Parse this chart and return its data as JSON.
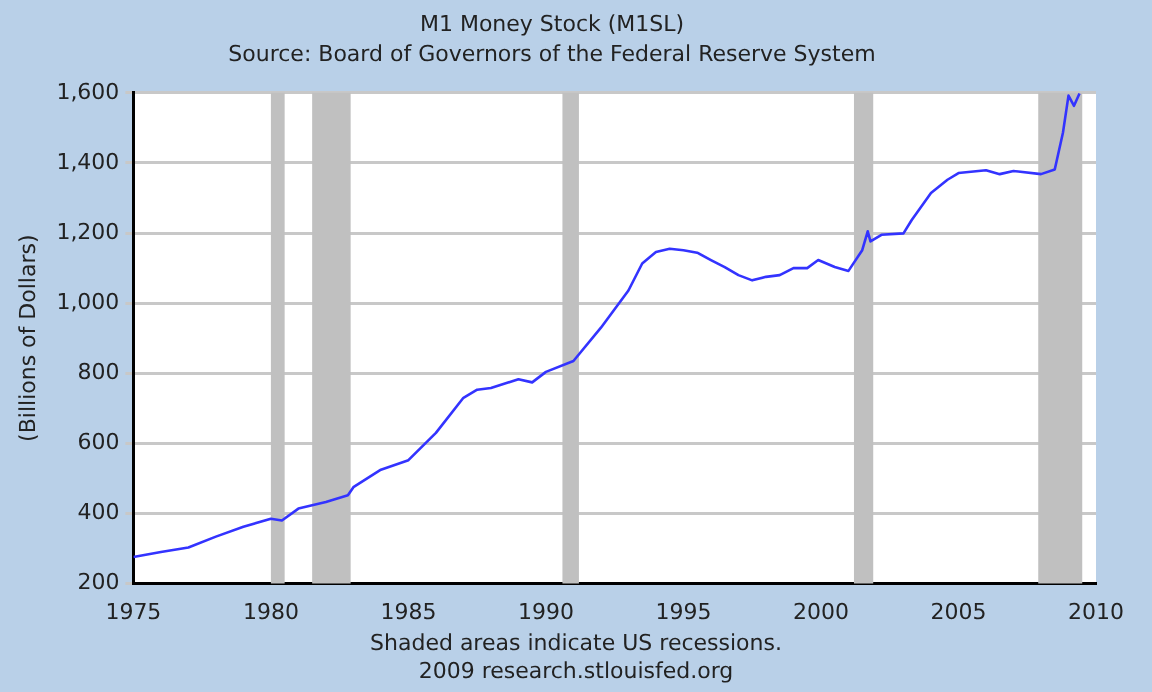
{
  "chart_data": {
    "type": "line",
    "title": "M1 Money Stock (M1SL)",
    "subtitle": "Source: Board of Governors of the Federal Reserve System",
    "ylabel": "(Billions of Dollars)",
    "annotations": [
      "Shaded areas indicate US recessions.",
      "2009 research.stlouisfed.org"
    ],
    "xlim": [
      1975,
      2010
    ],
    "xticks": [
      1975,
      1980,
      1985,
      1990,
      1995,
      2000,
      2005,
      2010
    ],
    "ylim": [
      200,
      1600
    ],
    "yticks": [
      {
        "value": 200,
        "label": "200"
      },
      {
        "value": 400,
        "label": "400"
      },
      {
        "value": 600,
        "label": "600"
      },
      {
        "value": 800,
        "label": "800"
      },
      {
        "value": 1000,
        "label": "1,000"
      },
      {
        "value": 1200,
        "label": "1,200"
      },
      {
        "value": 1400,
        "label": "1,400"
      },
      {
        "value": 1600,
        "label": "1,600"
      }
    ],
    "grid": "y",
    "legend": false,
    "marker": "none",
    "line_style": "solid",
    "bands": [
      {
        "axis": "x",
        "from": 1980.0,
        "to": 1980.5,
        "color": "#c0c0c0"
      },
      {
        "axis": "x",
        "from": 1981.5,
        "to": 1982.9,
        "color": "#c0c0c0"
      },
      {
        "axis": "x",
        "from": 1990.6,
        "to": 1991.2,
        "color": "#c0c0c0"
      },
      {
        "axis": "x",
        "from": 2001.2,
        "to": 2001.9,
        "color": "#c0c0c0"
      },
      {
        "axis": "x",
        "from": 2007.9,
        "to": 2009.5,
        "color": "#c0c0c0"
      }
    ],
    "series": [
      {
        "color": "#3333ff",
        "x": [
          1975,
          1976,
          1977,
          1978,
          1979,
          1980,
          1980.4,
          1981,
          1982,
          1982.8,
          1983,
          1984,
          1985,
          1986,
          1987,
          1987.5,
          1988,
          1989,
          1989.5,
          1990,
          1991,
          1992,
          1993,
          1993.5,
          1994,
          1994.5,
          1995,
          1995.5,
          1996,
          1996.5,
          1997,
          1997.5,
          1998,
          1998.5,
          1999,
          1999.5,
          1999.9,
          2000.5,
          2001,
          2001.5,
          2001.7,
          2001.8,
          2002.2,
          2003,
          2003.3,
          2004,
          2004.6,
          2005,
          2006,
          2006.5,
          2007,
          2008,
          2008.5,
          2008.8,
          2009,
          2009.2,
          2009.4
        ],
        "values": [
          276,
          290,
          303,
          334,
          362,
          385,
          380,
          414,
          433,
          452,
          475,
          525,
          552,
          630,
          730,
          753,
          758,
          783,
          774,
          804,
          835,
          930,
          1036,
          1113,
          1146,
          1155,
          1151,
          1144,
          1123,
          1103,
          1080,
          1065,
          1075,
          1080,
          1100,
          1100,
          1123,
          1103,
          1092,
          1151,
          1205,
          1176,
          1195,
          1199,
          1237,
          1314,
          1352,
          1371,
          1379,
          1368,
          1377,
          1368,
          1381,
          1487,
          1592,
          1563,
          1598
        ]
      }
    ]
  }
}
